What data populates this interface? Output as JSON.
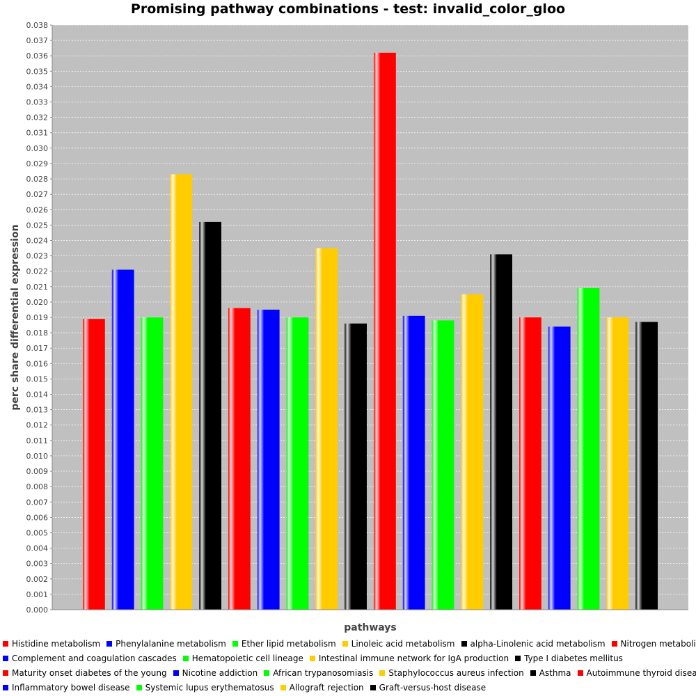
{
  "chart_data": {
    "type": "bar",
    "title": "Promising pathway combinations - test: invalid_color_gloo",
    "xlabel": "pathways",
    "ylabel": "perc share differential expression",
    "ylim": [
      0,
      0.038
    ],
    "ytick_step": 0.001,
    "grid": true,
    "legend_position": "bottom",
    "categories": [
      ""
    ],
    "series": [
      {
        "name": "Histidine metabolism",
        "color": "#ff0000",
        "values": [
          0.0189
        ]
      },
      {
        "name": "Phenylalanine metabolism",
        "color": "#0000ff",
        "values": [
          0.0221
        ]
      },
      {
        "name": "Ether lipid metabolism",
        "color": "#00ff00",
        "values": [
          0.019
        ]
      },
      {
        "name": "Linoleic acid metabolism",
        "color": "#ffcc00",
        "values": [
          0.0283
        ]
      },
      {
        "name": "alpha-Linolenic acid metabolism",
        "color": "#000000",
        "values": [
          0.0252
        ]
      },
      {
        "name": "Nitrogen metabolism",
        "color": "#ff0000",
        "values": [
          0.0196
        ]
      },
      {
        "name": "Complement and coagulation cascades",
        "color": "#0000ff",
        "values": [
          0.0195
        ]
      },
      {
        "name": "Hematopoietic cell lineage",
        "color": "#00ff00",
        "values": [
          0.019
        ]
      },
      {
        "name": "Intestinal immune network for IgA production",
        "color": "#ffcc00",
        "values": [
          0.0235
        ]
      },
      {
        "name": "Type I diabetes mellitus",
        "color": "#000000",
        "values": [
          0.0186
        ]
      },
      {
        "name": "Maturity onset diabetes of the young",
        "color": "#ff0000",
        "values": [
          0.0362
        ]
      },
      {
        "name": "Nicotine addiction",
        "color": "#0000ff",
        "values": [
          0.0191
        ]
      },
      {
        "name": "African trypanosomiasis",
        "color": "#00ff00",
        "values": [
          0.0188
        ]
      },
      {
        "name": "Staphylococcus aureus infection",
        "color": "#ffcc00",
        "values": [
          0.0205
        ]
      },
      {
        "name": "Asthma",
        "color": "#000000",
        "values": [
          0.0231
        ]
      },
      {
        "name": "Autoimmune thyroid disease",
        "color": "#ff0000",
        "values": [
          0.019
        ]
      },
      {
        "name": "Inflammatory bowel disease",
        "color": "#0000ff",
        "values": [
          0.0184
        ]
      },
      {
        "name": "Systemic lupus erythematosus",
        "color": "#00ff00",
        "values": [
          0.0209
        ]
      },
      {
        "name": "Allograft rejection",
        "color": "#ffcc00",
        "values": [
          0.019
        ]
      },
      {
        "name": "Graft-versus-host disease",
        "color": "#000000",
        "values": [
          0.0187
        ]
      }
    ],
    "legend_rows": [
      [
        0,
        1,
        2,
        3,
        4,
        5
      ],
      [
        6,
        7,
        8,
        9
      ],
      [
        10,
        11,
        12,
        13,
        14,
        15
      ],
      [
        16,
        17,
        18,
        19
      ]
    ]
  }
}
